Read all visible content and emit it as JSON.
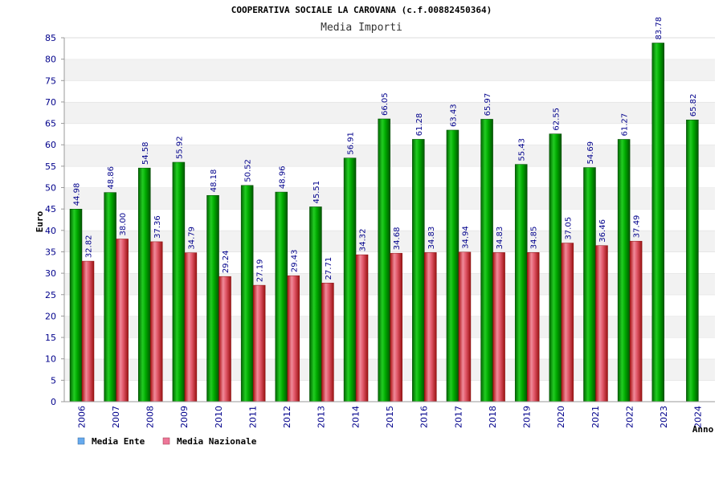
{
  "colors": {
    "ente": "#00aa00",
    "nazionale": "#dd3333",
    "legend_ente": "#66aaee",
    "legend_nazionale": "#ee7799",
    "axis_text": "#00008b",
    "band": "#f2f2f2",
    "grid": "#dddddd"
  },
  "chart_data": {
    "type": "bar",
    "title": "COOPERATIVA SOCIALE LA CAROVANA (c.f.00882450364)",
    "subtitle": "Media Importi",
    "xlabel": "Anno",
    "ylabel": "Euro",
    "ylim": [
      0,
      85
    ],
    "yticks": [
      0,
      5,
      10,
      15,
      20,
      25,
      30,
      35,
      40,
      45,
      50,
      55,
      60,
      65,
      70,
      75,
      80,
      85
    ],
    "grid": true,
    "legend_position": "bottom-left",
    "categories": [
      "2006",
      "2007",
      "2008",
      "2009",
      "2010",
      "2011",
      "2012",
      "2013",
      "2014",
      "2015",
      "2016",
      "2017",
      "2018",
      "2019",
      "2020",
      "2021",
      "2022",
      "2023",
      "2024"
    ],
    "series": [
      {
        "name": "Media Ente",
        "values": [
          44.98,
          48.86,
          54.58,
          55.92,
          48.18,
          50.52,
          48.96,
          45.51,
          56.91,
          66.05,
          61.28,
          63.43,
          65.97,
          55.43,
          62.55,
          54.69,
          61.27,
          83.78,
          65.82
        ],
        "labels": [
          "44.98",
          "48.86",
          "54.58",
          "55.92",
          "48.18",
          "50.52",
          "48.96",
          "45.51",
          "56.91",
          "66.05",
          "61.28",
          "63.43",
          "65.97",
          "55.43",
          "62.55",
          "54.69",
          "61.27",
          "83.78",
          "65.82"
        ]
      },
      {
        "name": "Media Nazionale",
        "values": [
          32.82,
          38.0,
          37.36,
          34.79,
          29.24,
          27.19,
          29.43,
          27.71,
          34.32,
          34.68,
          34.83,
          34.94,
          34.83,
          34.85,
          37.05,
          36.46,
          37.49,
          null,
          null
        ],
        "labels": [
          "32.82",
          "38.00",
          "37.36",
          "34.79",
          "29.24",
          "27.19",
          "29.43",
          "27.71",
          "34.32",
          "34.68",
          "34.83",
          "34.94",
          "34.83",
          "34.85",
          "37.05",
          "36.46",
          "37.49",
          null,
          null
        ]
      }
    ]
  }
}
